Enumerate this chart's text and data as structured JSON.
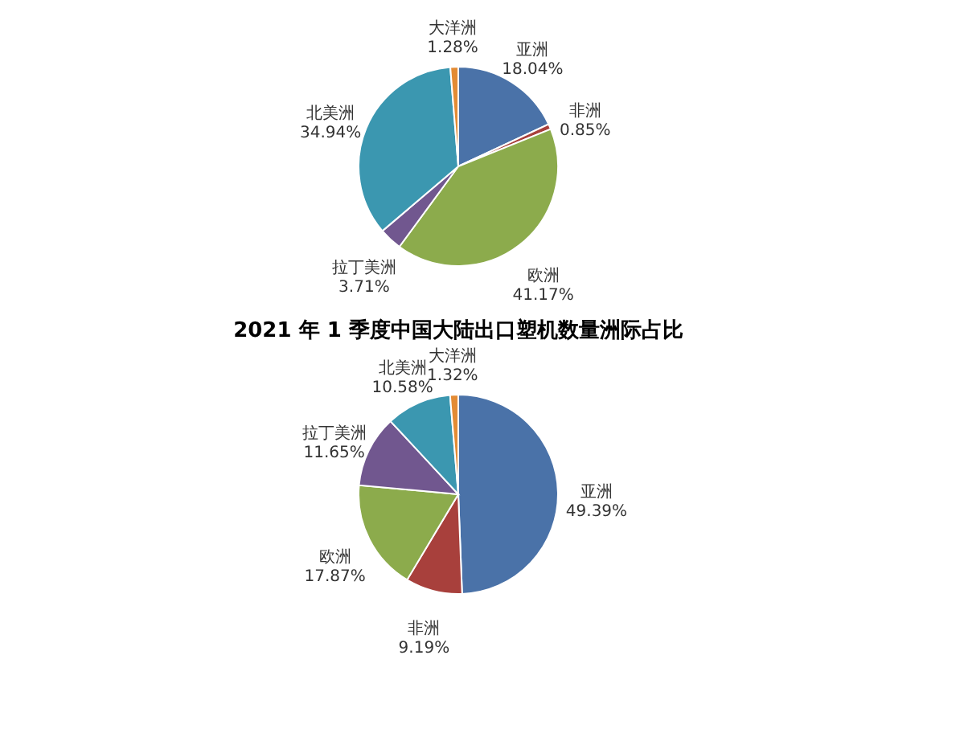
{
  "chart_data": [
    {
      "type": "pie",
      "categories": [
        "亚洲",
        "非洲",
        "欧洲",
        "拉丁美洲",
        "北美洲",
        "大洋洲"
      ],
      "values": [
        18.04,
        0.85,
        41.17,
        3.71,
        34.94,
        1.28
      ],
      "value_labels": [
        "18.04%",
        "0.85%",
        "41.17%",
        "3.71%",
        "34.94%",
        "1.28%"
      ],
      "colors": [
        "#4a72a8",
        "#a8403c",
        "#8cab4c",
        "#71578f",
        "#3b97b0",
        "#e38b34"
      ],
      "legend": false
    },
    {
      "type": "pie",
      "title": "2021 年 1 季度中国大陆出口塑机数量洲际占比",
      "categories": [
        "亚洲",
        "非洲",
        "欧洲",
        "拉丁美洲",
        "北美洲",
        "大洋洲"
      ],
      "values": [
        49.39,
        9.19,
        17.87,
        11.65,
        10.58,
        1.32
      ],
      "value_labels": [
        "49.39%",
        "9.19%",
        "17.87%",
        "11.65%",
        "10.58%",
        "1.32%"
      ],
      "colors": [
        "#4a72a8",
        "#a8403c",
        "#8cab4c",
        "#71578f",
        "#3b97b0",
        "#e38b34"
      ],
      "legend": false
    }
  ]
}
